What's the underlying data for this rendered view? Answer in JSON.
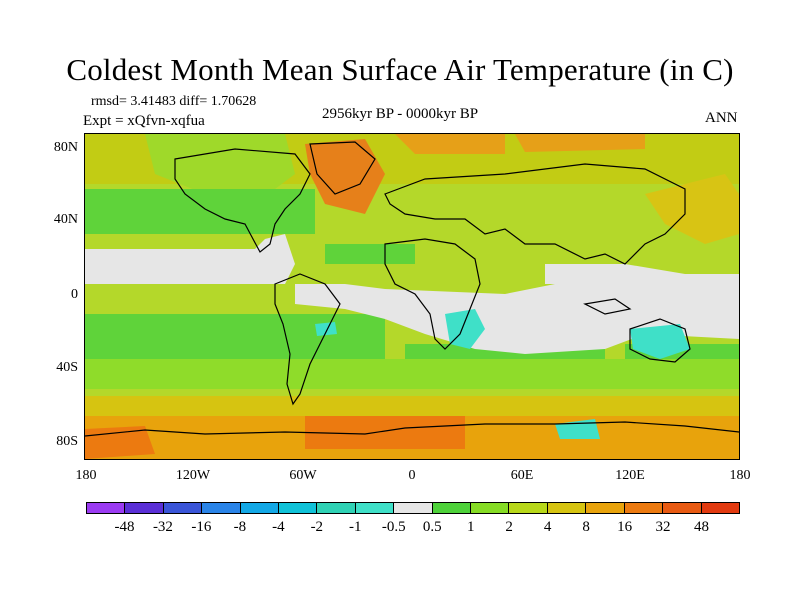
{
  "title": "Coldest Month Mean Surface Air Temperature (in C)",
  "stats": "rmsd= 3.41483 diff= 1.70628",
  "experiment": "Expt = xQfvn-xqfua",
  "period": "2956kyr BP - 0000kyr BP",
  "season": "ANN",
  "lat_ticks": [
    "80N",
    "40N",
    "0",
    "40S",
    "80S"
  ],
  "lon_ticks": [
    "180",
    "120W",
    "60W",
    "0",
    "60E",
    "120E",
    "180"
  ],
  "colorbar": {
    "labels": [
      "-48",
      "-32",
      "-16",
      "-8",
      "-4",
      "-2",
      "-1",
      "-0.5",
      "0.5",
      "1",
      "2",
      "4",
      "8",
      "16",
      "32",
      "48"
    ],
    "colors": [
      "#9b3bf2",
      "#5a2fd6",
      "#3a55d8",
      "#2a84e8",
      "#13a8e6",
      "#10c2d8",
      "#2fd2b5",
      "#3fe0c8",
      "#e6e6e6",
      "#4ed23a",
      "#86dc25",
      "#b8d81a",
      "#d6c411",
      "#e8a30c",
      "#ec7a10",
      "#e85a12",
      "#e23a10"
    ]
  }
}
